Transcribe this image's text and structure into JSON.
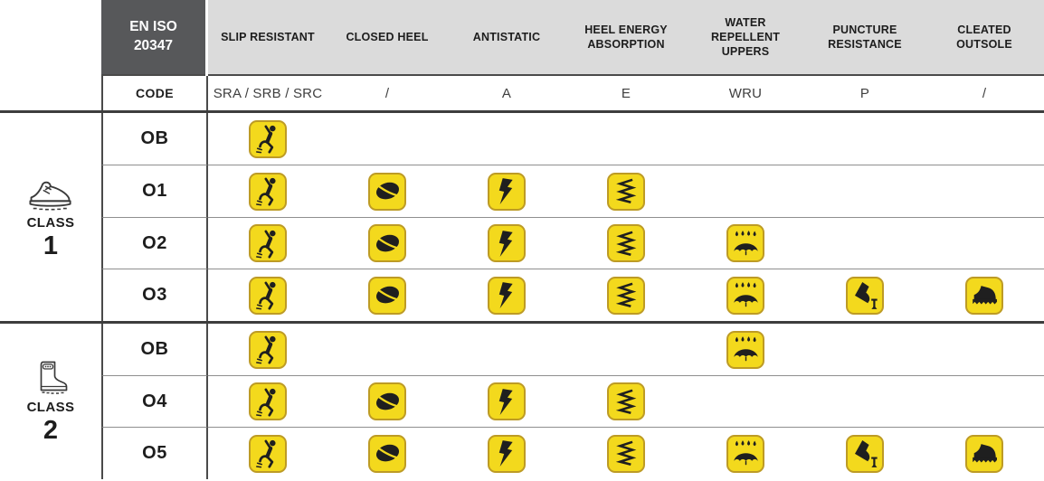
{
  "table": {
    "standard": {
      "line1": "EN ISO",
      "line2": "20347"
    },
    "code_row_label": "CODE",
    "columns": [
      {
        "label": "SLIP RESISTANT",
        "code": "SRA / SRB / SRC",
        "icon": "slip-resistant-icon"
      },
      {
        "label": "CLOSED HEEL",
        "code": "/",
        "icon": "closed-heel-icon"
      },
      {
        "label": "ANTISTATIC",
        "code": "A",
        "icon": "antistatic-icon"
      },
      {
        "label": "HEEL ENERGY ABSORPTION",
        "code": "E",
        "icon": "heel-energy-icon"
      },
      {
        "label": "WATER REPELLENT UPPERS",
        "code": "WRU",
        "icon": "water-repellent-icon"
      },
      {
        "label": "PUNCTURE RESISTANCE",
        "code": "P",
        "icon": "puncture-resistance-icon"
      },
      {
        "label": "CLEATED OUTSOLE",
        "code": "/",
        "icon": "cleated-outsole-icon"
      }
    ],
    "classes": [
      {
        "label": "CLASS",
        "number": "1",
        "icon": "low-shoe-icon",
        "rows": [
          {
            "code": "OB",
            "features": [
              true,
              false,
              false,
              false,
              false,
              false,
              false
            ]
          },
          {
            "code": "O1",
            "features": [
              true,
              true,
              true,
              true,
              false,
              false,
              false
            ]
          },
          {
            "code": "O2",
            "features": [
              true,
              true,
              true,
              true,
              true,
              false,
              false
            ]
          },
          {
            "code": "O3",
            "features": [
              true,
              true,
              true,
              true,
              true,
              true,
              true
            ]
          }
        ]
      },
      {
        "label": "CLASS",
        "number": "2",
        "icon": "rubber-boot-icon",
        "rows": [
          {
            "code": "OB",
            "features": [
              true,
              false,
              false,
              false,
              true,
              false,
              false
            ]
          },
          {
            "code": "O4",
            "features": [
              true,
              true,
              true,
              true,
              false,
              false,
              false
            ]
          },
          {
            "code": "O5",
            "features": [
              true,
              true,
              true,
              true,
              true,
              true,
              true
            ]
          }
        ]
      }
    ],
    "colors": {
      "pictogram_bg": "#F3D91D",
      "pictogram_border": "#BD9B25",
      "pictogram_glyph": "#1F1F1F",
      "header_band": "#DBDBDB",
      "standard_box": "#57585A",
      "grid_dark": "#4A4A4A",
      "grid_thin": "#8F8F8F"
    }
  }
}
